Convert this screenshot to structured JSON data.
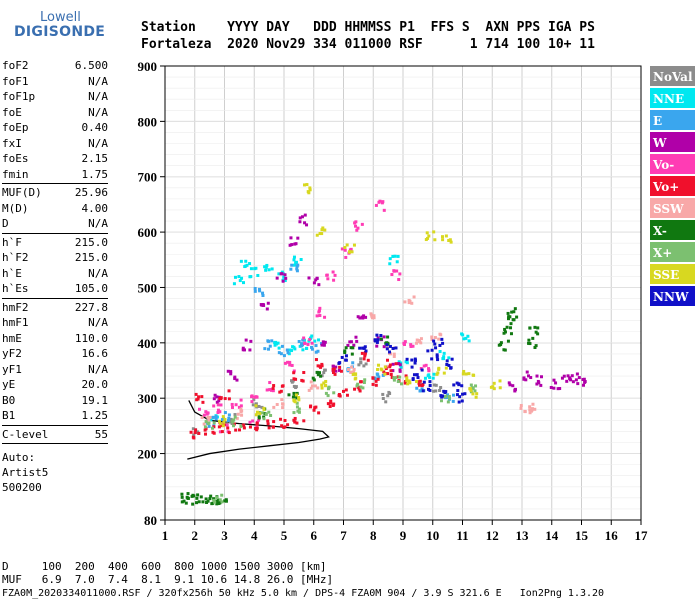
{
  "logo": {
    "line1": "Lowell",
    "line2": "DIGISONDE"
  },
  "header": {
    "row1": "Station    YYYY DAY   DDD HHMMSS P1  FFS S  AXN PPS IGA PS",
    "row2": "Fortaleza  2020 Nov29 334 011000 RSF      1 714 100 10+ 11"
  },
  "params": [
    {
      "name": "foF2",
      "value": "6.500"
    },
    {
      "name": "foF1",
      "value": "N/A"
    },
    {
      "name": "foF1p",
      "value": "N/A"
    },
    {
      "name": "foE",
      "value": "N/A"
    },
    {
      "name": "foEp",
      "value": "0.40"
    },
    {
      "name": "fxI",
      "value": "N/A"
    },
    {
      "name": "foEs",
      "value": "2.15"
    },
    {
      "name": "fmin",
      "value": "1.75"
    },
    {
      "sep": true
    },
    {
      "name": "MUF(D)",
      "value": "25.96"
    },
    {
      "name": "M(D)",
      "value": "4.00"
    },
    {
      "name": "D",
      "value": "N/A"
    },
    {
      "sep": true
    },
    {
      "name": "h`F",
      "value": "215.0"
    },
    {
      "name": "h`F2",
      "value": "215.0"
    },
    {
      "name": "h`E",
      "value": "N/A"
    },
    {
      "name": "h`Es",
      "value": "105.0"
    },
    {
      "sep": true
    },
    {
      "name": "hmF2",
      "value": "227.8"
    },
    {
      "name": "hmF1",
      "value": "N/A"
    },
    {
      "name": "hmE",
      "value": "110.0"
    },
    {
      "name": "yF2",
      "value": "16.6"
    },
    {
      "name": "yF1",
      "value": "N/A"
    },
    {
      "name": "yE",
      "value": "20.0"
    },
    {
      "name": "B0",
      "value": "19.1"
    },
    {
      "name": "B1",
      "value": "1.25"
    },
    {
      "sep": true
    },
    {
      "name": "C-level",
      "value": "55"
    },
    {
      "sep": true
    }
  ],
  "auto": {
    "line1": "Auto:",
    "line2": "Artist5",
    "line3": "500200"
  },
  "legend": [
    {
      "label": "NoVal",
      "color": "#8c8c8c"
    },
    {
      "label": "NNE",
      "color": "#00e8f0"
    },
    {
      "label": "E",
      "color": "#3aa6ee"
    },
    {
      "label": "W",
      "color": "#b000a8"
    },
    {
      "label": "Vo-",
      "color": "#ff3cb4"
    },
    {
      "label": "Vo+",
      "color": "#f0102c"
    },
    {
      "label": "SSW",
      "color": "#f8a8a8"
    },
    {
      "label": "X-",
      "color": "#107810"
    },
    {
      "label": "X+",
      "color": "#7cc070"
    },
    {
      "label": "SSE",
      "color": "#d8d820"
    },
    {
      "label": "NNW",
      "color": "#1010c8"
    }
  ],
  "footer": {
    "row1": "D     100  200  400  600  800 1000 1500 3000 [km]",
    "row2": "MUF   6.9  7.0  7.4  8.1  9.1 10.6 14.8 26.0 [MHz]",
    "row3": "FZA0M_2020334011000.RSF / 320fx256h 50 kHz 5.0 km / DPS-4 FZA0M 904 / 3.9 S 321.6 E   Ion2Png 1.3.20"
  },
  "chart_data": {
    "type": "scatter",
    "title": "",
    "xlabel": "",
    "ylabel": "",
    "xlim": [
      1,
      17
    ],
    "ylim": [
      80,
      900
    ],
    "x_ticks": [
      1,
      2,
      3,
      4,
      5,
      6,
      7,
      8,
      9,
      10,
      11,
      12,
      13,
      14,
      15,
      16,
      17
    ],
    "y_ticks": [
      80,
      200,
      300,
      400,
      500,
      600,
      700,
      800,
      900
    ],
    "grid": true,
    "profile_x": [
      1.75,
      2.5,
      3.5,
      4.5,
      5.5,
      6.2,
      6.5,
      6.3,
      5.5,
      4.5,
      3.5,
      2.5,
      2.0,
      1.8
    ],
    "profile_y": [
      190,
      200,
      208,
      214,
      220,
      226,
      230,
      240,
      245,
      250,
      254,
      260,
      275,
      296
    ],
    "series": [
      {
        "name": "NoVal",
        "color": "#8c8c8c",
        "points": [
          [
            2.1,
            238
          ],
          [
            3.2,
            262
          ],
          [
            4.1,
            289
          ],
          [
            5.4,
            324
          ],
          [
            6.3,
            348
          ],
          [
            7.6,
            365
          ],
          [
            8.4,
            302
          ],
          [
            10.2,
            315
          ]
        ]
      },
      {
        "name": "NNE",
        "color": "#00e8f0",
        "points": [
          [
            3.5,
            513
          ],
          [
            4.0,
            528
          ],
          [
            4.5,
            540
          ],
          [
            5.0,
            520
          ],
          [
            5.5,
            548
          ],
          [
            3.7,
            540
          ],
          [
            4.7,
            392
          ],
          [
            5.2,
            388
          ],
          [
            5.7,
            396
          ],
          [
            6.0,
            405
          ],
          [
            9.9,
            342
          ],
          [
            10.4,
            380
          ],
          [
            11.1,
            412
          ],
          [
            8.7,
            548
          ],
          [
            9.0,
            362
          ],
          [
            2.6,
            264
          ]
        ]
      },
      {
        "name": "E",
        "color": "#3aa6ee",
        "points": [
          [
            4.5,
            396
          ],
          [
            5.0,
            385
          ],
          [
            5.6,
            402
          ],
          [
            6.1,
            392
          ],
          [
            2.6,
            258
          ],
          [
            3.1,
            266
          ],
          [
            7.3,
            356
          ],
          [
            8.2,
            338
          ],
          [
            9.6,
            318
          ],
          [
            10.6,
            302
          ],
          [
            4.2,
            493
          ],
          [
            5.3,
            535
          ]
        ]
      },
      {
        "name": "W",
        "color": "#b000a8",
        "points": [
          [
            2.8,
            300
          ],
          [
            3.3,
            340
          ],
          [
            3.8,
            396
          ],
          [
            4.4,
            468
          ],
          [
            4.9,
            520
          ],
          [
            5.3,
            582
          ],
          [
            5.6,
            622
          ],
          [
            6.0,
            512
          ],
          [
            6.4,
            402
          ],
          [
            6.8,
            356
          ],
          [
            7.3,
            402
          ],
          [
            7.6,
            442
          ],
          [
            8.2,
            402
          ],
          [
            8.8,
            355
          ],
          [
            12.7,
            322
          ],
          [
            13.2,
            340
          ],
          [
            13.6,
            332
          ],
          [
            14.1,
            325
          ],
          [
            14.5,
            332
          ],
          [
            14.8,
            336
          ],
          [
            15.0,
            330
          ]
        ]
      },
      {
        "name": "Vo-",
        "color": "#ff3cb4",
        "points": [
          [
            2.3,
            275
          ],
          [
            2.8,
            280
          ],
          [
            3.4,
            292
          ],
          [
            4.0,
            302
          ],
          [
            4.6,
            320
          ],
          [
            5.2,
            356
          ],
          [
            5.8,
            402
          ],
          [
            6.2,
            455
          ],
          [
            6.6,
            520
          ],
          [
            7.1,
            562
          ],
          [
            7.5,
            612
          ],
          [
            8.2,
            648
          ],
          [
            8.8,
            522
          ],
          [
            9.2,
            402
          ],
          [
            9.7,
            352
          ],
          [
            3.0,
            248
          ],
          [
            4.0,
            252
          ]
        ]
      },
      {
        "name": "Vo+",
        "color": "#f0102c",
        "points": [
          [
            2.0,
            237
          ],
          [
            2.5,
            243
          ],
          [
            3.0,
            245
          ],
          [
            3.5,
            247
          ],
          [
            4.0,
            250
          ],
          [
            4.5,
            253
          ],
          [
            5.0,
            256
          ],
          [
            5.5,
            263
          ],
          [
            6.0,
            278
          ],
          [
            6.5,
            290
          ],
          [
            7.0,
            312
          ],
          [
            7.5,
            322
          ],
          [
            8.0,
            332
          ],
          [
            8.5,
            342
          ],
          [
            9.0,
            336
          ],
          [
            9.5,
            322
          ],
          [
            6.8,
            350
          ],
          [
            7.8,
            375
          ],
          [
            8.6,
            362
          ],
          [
            2.2,
            300
          ],
          [
            3.0,
            305
          ],
          [
            4.8,
            318
          ],
          [
            5.5,
            340
          ],
          [
            6.2,
            362
          ]
        ]
      },
      {
        "name": "SSW",
        "color": "#f8a8a8",
        "points": [
          [
            2.4,
            262
          ],
          [
            3.6,
            272
          ],
          [
            4.8,
            292
          ],
          [
            6.0,
            322
          ],
          [
            7.3,
            352
          ],
          [
            8.6,
            382
          ],
          [
            9.6,
            402
          ],
          [
            10.1,
            412
          ],
          [
            8.0,
            452
          ],
          [
            9.2,
            475
          ],
          [
            13.1,
            280
          ],
          [
            13.3,
            284
          ]
        ]
      },
      {
        "name": "X-",
        "color": "#107810",
        "points": [
          [
            1.7,
            119
          ],
          [
            1.9,
            117
          ],
          [
            2.1,
            120
          ],
          [
            2.4,
            118
          ],
          [
            2.7,
            119
          ],
          [
            2.9,
            117
          ],
          [
            4.2,
            272
          ],
          [
            5.3,
            302
          ],
          [
            6.1,
            342
          ],
          [
            7.2,
            386
          ],
          [
            8.4,
            402
          ],
          [
            12.4,
            395
          ],
          [
            12.5,
            425
          ],
          [
            12.6,
            442
          ],
          [
            12.7,
            455
          ],
          [
            13.3,
            400
          ],
          [
            13.4,
            420
          ]
        ]
      },
      {
        "name": "X+",
        "color": "#7cc070",
        "points": [
          [
            2.5,
            250
          ],
          [
            3.4,
            258
          ],
          [
            4.4,
            266
          ],
          [
            5.4,
            282
          ],
          [
            6.6,
            312
          ],
          [
            7.6,
            326
          ],
          [
            8.8,
            334
          ],
          [
            10.4,
            296
          ],
          [
            2.8,
            121
          ],
          [
            11.4,
            320
          ]
        ]
      },
      {
        "name": "SSE",
        "color": "#d8d820",
        "points": [
          [
            2.9,
            258
          ],
          [
            4.2,
            278
          ],
          [
            5.5,
            302
          ],
          [
            6.4,
            322
          ],
          [
            7.3,
            338
          ],
          [
            8.3,
            352
          ],
          [
            9.3,
            332
          ],
          [
            10.3,
            352
          ],
          [
            11.2,
            345
          ],
          [
            11.4,
            310
          ],
          [
            12.1,
            325
          ],
          [
            9.9,
            595
          ],
          [
            10.5,
            590
          ],
          [
            6.2,
            600
          ],
          [
            5.8,
            680
          ],
          [
            7.2,
            570
          ]
        ]
      },
      {
        "name": "NNW",
        "color": "#1010c8",
        "points": [
          [
            7.0,
            368
          ],
          [
            7.6,
            390
          ],
          [
            8.1,
            408
          ],
          [
            8.6,
            392
          ],
          [
            9.3,
            362
          ],
          [
            9.5,
            342
          ],
          [
            9.8,
            322
          ],
          [
            10.0,
            378
          ],
          [
            10.2,
            398
          ],
          [
            10.6,
            362
          ],
          [
            10.8,
            322
          ],
          [
            11.0,
            302
          ],
          [
            10.4,
            305
          ]
        ]
      }
    ]
  }
}
